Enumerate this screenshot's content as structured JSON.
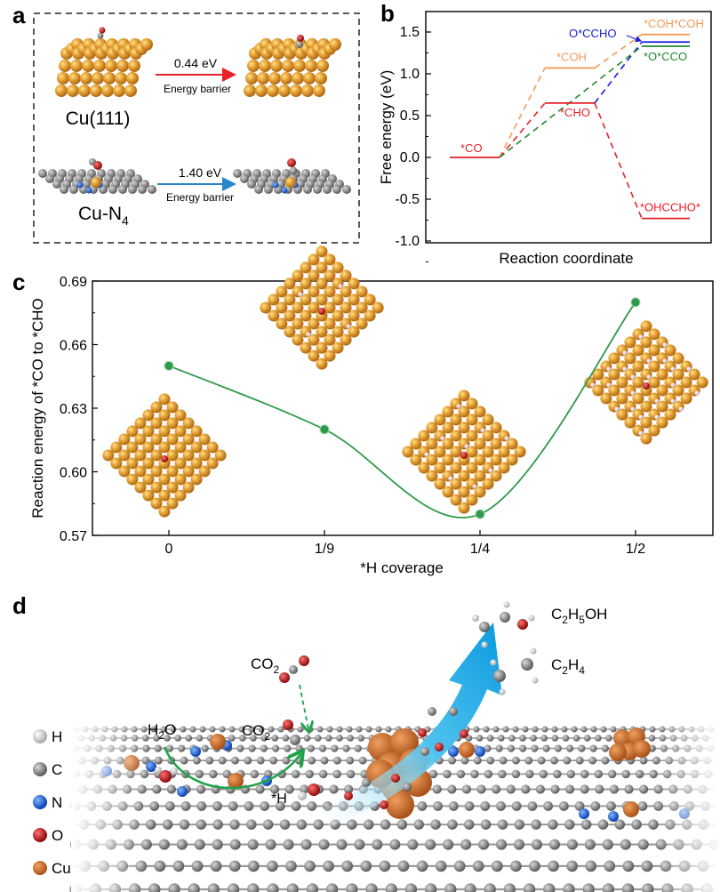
{
  "panel_labels": {
    "a": "a",
    "b": "b",
    "c": "c",
    "d": "d"
  },
  "panel_a": {
    "top": {
      "surface": "Cu(111)",
      "barrier": "0.44 eV",
      "caption": "Energy barrier",
      "arrow_color": "#e8202a"
    },
    "bottom": {
      "surface_main": "Cu-N",
      "surface_sub": "4",
      "barrier": "1.40 eV",
      "caption": "Energy barrier",
      "arrow_color": "#2a86c8"
    }
  },
  "chart_data": [
    {
      "id": "b",
      "type": "line",
      "title": "",
      "xlabel": "Reaction coordinate",
      "ylabel": "Free energy (eV)",
      "ylim": [
        -1.0,
        1.75
      ],
      "yticks": [
        "1.5",
        "1.0",
        "0.5",
        "0.0",
        "-0.5",
        "-1.0"
      ],
      "ytick_values": [
        1.5,
        1.0,
        0.5,
        0.0,
        -0.5,
        -1.0
      ],
      "levels": [
        {
          "label": "*CO",
          "step": 0,
          "value": 0.0,
          "color": "#e8202a"
        },
        {
          "label": "*COH",
          "step": 1,
          "value": 1.07,
          "color": "#f39a5a"
        },
        {
          "label": "*CHO",
          "step": 1,
          "value": 0.65,
          "color": "#e8202a"
        },
        {
          "label": "*COH*COH",
          "step": 2,
          "value": 1.47,
          "color": "#f39a5a"
        },
        {
          "label": "O*CCHO",
          "step": 2,
          "value": 1.38,
          "color": "#1a1adb"
        },
        {
          "label": "*O*CCO",
          "step": 2,
          "value": 1.33,
          "color": "#1f8a2c"
        },
        {
          "label": "*OHCCHO*",
          "step": 2,
          "value": -0.73,
          "color": "#e8202a"
        }
      ],
      "connectors": [
        {
          "from": 0,
          "to": 1,
          "color": "#f39a5a"
        },
        {
          "from": 1,
          "to": 3,
          "color": "#f39a5a"
        },
        {
          "from": 0,
          "to": 2,
          "color": "#e8202a"
        },
        {
          "from": 2,
          "to": 6,
          "color": "#e8202a"
        },
        {
          "from": 2,
          "to": 4,
          "color": "#1a1adb"
        },
        {
          "from": 0,
          "to": 5,
          "color": "#1f8a2c"
        }
      ]
    },
    {
      "id": "c",
      "type": "line",
      "title": "",
      "xlabel": "*H coverage",
      "ylabel": "Reaction energy of *CO to *CHO",
      "categories": [
        "0",
        "1/9",
        "1/4",
        "1/2"
      ],
      "values": [
        0.65,
        0.62,
        0.58,
        0.68
      ],
      "ylim": [
        0.57,
        0.69
      ],
      "yticks": [
        "0.69",
        "0.66",
        "0.63",
        "0.60",
        "0.57"
      ],
      "ytick_values": [
        0.69,
        0.66,
        0.63,
        0.6,
        0.57
      ],
      "series_color": "#2e9a4a"
    }
  ],
  "panel_d": {
    "labels": {
      "co2_top_main": "CO",
      "co2_top_sub": "2",
      "co2_mid_main": "CO",
      "co2_mid_sub": "2",
      "h2o_h": "H",
      "h2o_sub": "2",
      "h2o_o": "O",
      "star_h": "*H",
      "ethanol_c": "C",
      "ethanol_2": "2",
      "ethanol_h": "H",
      "ethanol_5": "5",
      "ethanol_oh": "OH",
      "ethylene_c": "C",
      "ethylene_2": "2",
      "ethylene_h": "H",
      "ethylene_4": "4"
    },
    "legend": [
      {
        "label": "H",
        "color": "#e6e6e6"
      },
      {
        "label": "C",
        "color": "#8c8c8c"
      },
      {
        "label": "N",
        "color": "#1f6fe0"
      },
      {
        "label": "O",
        "color": "#b01818"
      },
      {
        "label": "Cu",
        "color": "#d2772e"
      }
    ]
  }
}
